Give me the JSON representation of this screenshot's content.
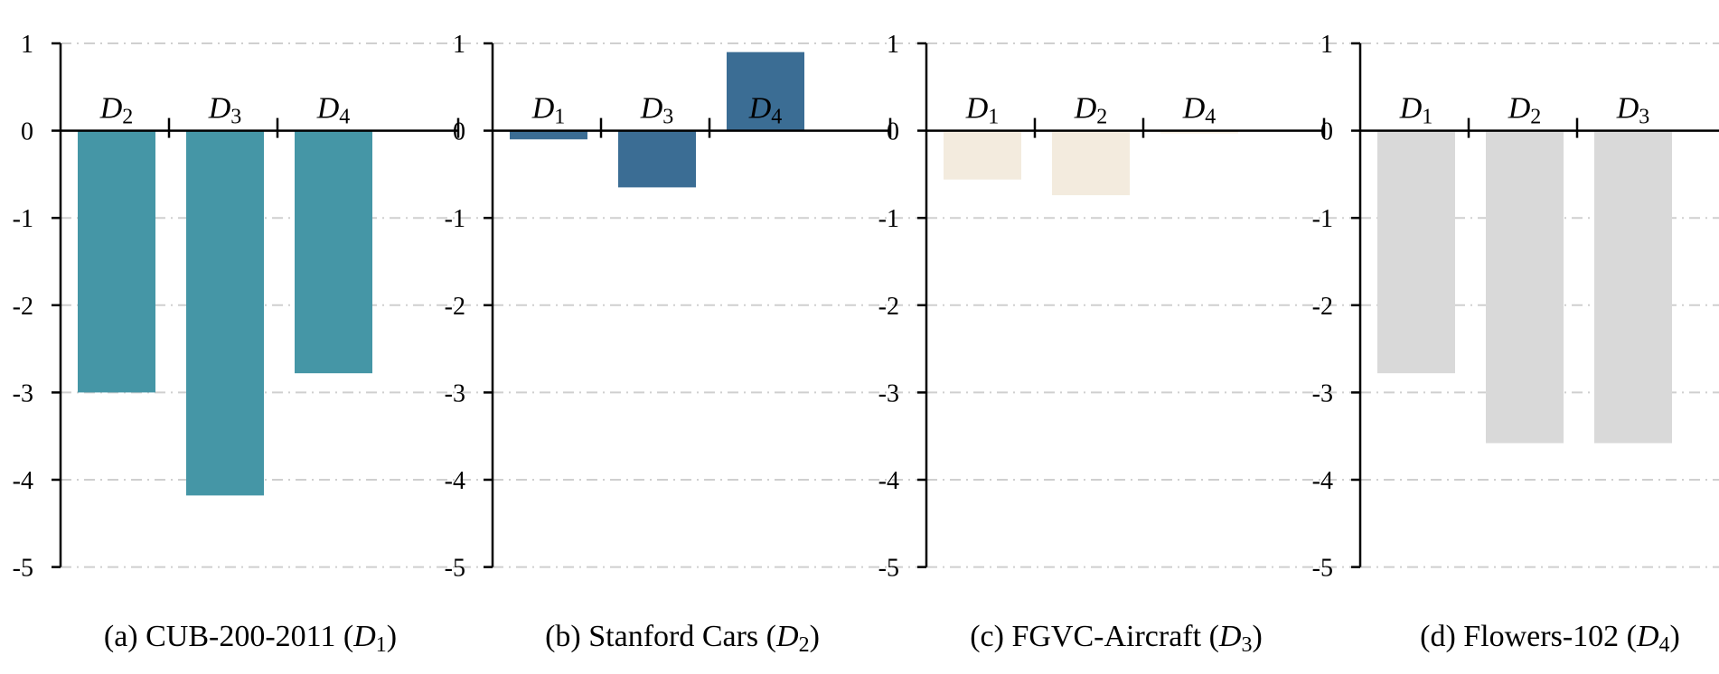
{
  "chart_data": [
    {
      "type": "bar",
      "caption": "(a) CUB-200-2011 (D1)",
      "caption_text": "(a) CUB-200-2011 (",
      "caption_sym": "D",
      "caption_sub": "1",
      "caption_close": ")",
      "categories": [
        {
          "sym": "D",
          "sub": "2"
        },
        {
          "sym": "D",
          "sub": "3"
        },
        {
          "sym": "D",
          "sub": "4"
        }
      ],
      "values": [
        -3.0,
        -4.18,
        -2.78
      ],
      "color": "#4596a6",
      "ylim": [
        -5,
        1
      ],
      "yticks": [
        "1",
        "0",
        "-1",
        "-2",
        "-3",
        "-4",
        "-5"
      ],
      "grid": true
    },
    {
      "type": "bar",
      "caption": "(b) Stanford Cars (D2)",
      "caption_text": "(b) Stanford Cars (",
      "caption_sym": "D",
      "caption_sub": "2",
      "caption_close": ")",
      "categories": [
        {
          "sym": "D",
          "sub": "1"
        },
        {
          "sym": "D",
          "sub": "3"
        },
        {
          "sym": "D",
          "sub": "4"
        }
      ],
      "values": [
        -0.1,
        -0.65,
        0.9
      ],
      "color": "#3b6d94",
      "ylim": [
        -5,
        1
      ],
      "yticks": [
        "1",
        "0",
        "-1",
        "-2",
        "-3",
        "-4",
        "-5"
      ],
      "grid": true
    },
    {
      "type": "bar",
      "caption": "(c) FGVC-Aircraft (D3)",
      "caption_text": "(c) FGVC-Aircraft (",
      "caption_sym": "D",
      "caption_sub": "3",
      "caption_close": ")",
      "categories": [
        {
          "sym": "D",
          "sub": "1"
        },
        {
          "sym": "D",
          "sub": "2"
        },
        {
          "sym": "D",
          "sub": "4"
        }
      ],
      "values": [
        -0.56,
        -0.74,
        -0.03
      ],
      "color": "#f3ebde",
      "ylim": [
        -5,
        1
      ],
      "yticks": [
        "1",
        "0",
        "-1",
        "-2",
        "-3",
        "-4",
        "-5"
      ],
      "grid": true
    },
    {
      "type": "bar",
      "caption": "(d) Flowers-102 (D4)",
      "caption_text": "(d) Flowers-102 (",
      "caption_sym": "D",
      "caption_sub": "4",
      "caption_close": ")",
      "categories": [
        {
          "sym": "D",
          "sub": "1"
        },
        {
          "sym": "D",
          "sub": "2"
        },
        {
          "sym": "D",
          "sub": "3"
        }
      ],
      "values": [
        -2.78,
        -3.58,
        -3.58
      ],
      "color": "#d9d9d9",
      "ylim": [
        -5,
        1
      ],
      "yticks": [
        "1",
        "0",
        "-1",
        "-2",
        "-3",
        "-4",
        "-5"
      ],
      "grid": true
    }
  ]
}
